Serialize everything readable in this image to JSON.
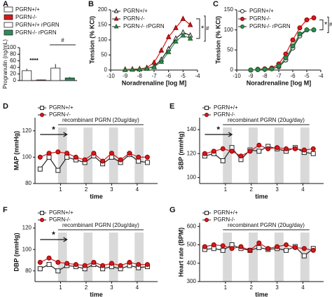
{
  "chart_data": [
    {
      "panel": "A",
      "type": "bar",
      "ylabel": "Progranulin (ng/mL)",
      "categories": [
        null,
        null,
        null,
        null
      ],
      "legend": [
        "PGRN+/+",
        "PGRN-/-",
        "PGRN+/+ rPGRN",
        "PGRN-/- rPGRN"
      ],
      "colors": [
        "#ffffff",
        "#d7191c",
        "#ffffff",
        "#2e8b57"
      ],
      "values": [
        30,
        2,
        38,
        8
      ],
      "errors": [
        6,
        1,
        12,
        3
      ],
      "significance": [
        "****",
        "#"
      ],
      "ylim": [
        0,
        100
      ],
      "yticks": [
        0,
        20,
        40,
        60,
        80,
        100
      ]
    },
    {
      "panel": "B",
      "type": "line",
      "ylabel": "Tension (% KCl)",
      "xlabel": "Noradrenaline [log M]",
      "x": [
        -9,
        -8.5,
        -8,
        -7.5,
        -7,
        -6.5,
        -6,
        -5.5,
        -5,
        -4.5
      ],
      "series": [
        {
          "name": "PGRN+/+",
          "color": "#ffffff",
          "marker": "triangle",
          "values": [
            2,
            2,
            3,
            5,
            12,
            35,
            70,
            105,
            125,
            115
          ]
        },
        {
          "name": "PGRN-/-",
          "color": "#d7191c",
          "marker": "triangle",
          "values": [
            2,
            3,
            4,
            8,
            25,
            65,
            110,
            140,
            170,
            150
          ]
        },
        {
          "name": "PGRN-/- rPGRN",
          "color": "#2e8b57",
          "marker": "triangle",
          "values": [
            1,
            2,
            3,
            5,
            10,
            28,
            60,
            95,
            115,
            105
          ]
        }
      ],
      "significance": [
        "*",
        "#"
      ],
      "xlim": [
        -10,
        -4
      ],
      "xticks": [
        -10,
        -9,
        -8,
        -7,
        -6,
        -5,
        -4
      ],
      "ylim": [
        0,
        200
      ],
      "yticks": [
        0,
        50,
        100,
        150,
        200
      ]
    },
    {
      "panel": "C",
      "type": "line",
      "ylabel": "Tension (% KCl)",
      "xlabel": "Noradrenaline [log M]",
      "x": [
        -9,
        -8.5,
        -8,
        -7.5,
        -7,
        -6.5,
        -6,
        -5.5,
        -5,
        -4.5
      ],
      "series": [
        {
          "name": "PGRN+/+",
          "color": "#ffffff",
          "marker": "circle",
          "values": [
            0,
            1,
            2,
            3,
            8,
            25,
            55,
            85,
            100,
            100
          ]
        },
        {
          "name": "PGRN-/-",
          "color": "#d7191c",
          "marker": "circle",
          "values": [
            0,
            2,
            3,
            5,
            15,
            40,
            75,
            105,
            125,
            130
          ]
        },
        {
          "name": "PGRN-/- rPGRN",
          "color": "#2e8b57",
          "marker": "circle",
          "values": [
            0,
            1,
            2,
            3,
            10,
            30,
            60,
            90,
            100,
            100
          ]
        }
      ],
      "significance": [
        "*",
        "#"
      ],
      "xlim": [
        -10,
        -4
      ],
      "xticks": [
        -10,
        -9,
        -8,
        -7,
        -6,
        -5,
        -4
      ],
      "ylim": [
        0,
        150
      ],
      "yticks": [
        0,
        50,
        100,
        150
      ]
    },
    {
      "panel": "D",
      "type": "line",
      "ylabel": "MAP (mmHg)",
      "xlabel": "time",
      "annotation": "recombinant PGRN (20ug/day)",
      "arrow_label": "*",
      "shaded_intervals": [
        [
          0.9,
          1.25
        ],
        [
          1.9,
          2.25
        ],
        [
          2.9,
          3.25
        ],
        [
          3.9,
          4.25
        ]
      ],
      "x": [
        0.2,
        0.55,
        0.9,
        1.25,
        1.6,
        1.95,
        2.3,
        2.65,
        3.0,
        3.35,
        3.7,
        4.05,
        4.4
      ],
      "series": [
        {
          "name": "PGRN+/+",
          "color": "#ffffff",
          "marker": "square",
          "values": [
            91,
            100,
            90,
            100,
            98,
            96,
            101,
            95,
            100,
            96,
            102,
            97,
            96
          ]
        },
        {
          "name": "PGRN-/-",
          "color": "#d7191c",
          "marker": "circle",
          "values": [
            100,
            103,
            104,
            103,
            100,
            98,
            103,
            97,
            103,
            98,
            103,
            100,
            100
          ]
        }
      ],
      "xlim": [
        0,
        4.8
      ],
      "xticks": [
        1,
        2,
        3,
        4
      ],
      "ylim": [
        80,
        130
      ],
      "yticks": [
        80,
        100,
        120
      ]
    },
    {
      "panel": "E",
      "type": "line",
      "ylabel": "SBP (mmHg)",
      "xlabel": "time",
      "annotation": "recombinant PGRN (20ug/day)",
      "arrow_label": "*",
      "shaded_intervals": [
        [
          0.9,
          1.25
        ],
        [
          1.9,
          2.25
        ],
        [
          2.9,
          3.25
        ],
        [
          3.9,
          4.25
        ]
      ],
      "x": [
        0.2,
        0.55,
        0.9,
        1.25,
        1.6,
        1.95,
        2.3,
        2.65,
        3.0,
        3.35,
        3.7,
        4.05,
        4.4
      ],
      "series": [
        {
          "name": "PGRN+/+",
          "color": "#ffffff",
          "marker": "square",
          "values": [
            118,
            120,
            114,
            125,
            115,
            123,
            122,
            126,
            124,
            122,
            125,
            121,
            120
          ]
        },
        {
          "name": "PGRN-/-",
          "color": "#d7191c",
          "marker": "circle",
          "values": [
            120,
            122,
            124,
            122,
            118,
            122,
            127,
            124,
            125,
            124,
            124,
            123,
            124
          ]
        }
      ],
      "xlim": [
        0,
        4.8
      ],
      "xticks": [
        1,
        2,
        3,
        4
      ],
      "ylim": [
        95,
        150
      ],
      "yticks": [
        100,
        120,
        140
      ]
    },
    {
      "panel": "F",
      "type": "line",
      "ylabel": "DBP (mmHg)",
      "xlabel": "time",
      "annotation": "recombinant PGRN (20ug/day)",
      "arrow_label": "*",
      "shaded_intervals": [
        [
          0.9,
          1.25
        ],
        [
          1.9,
          2.25
        ],
        [
          2.9,
          3.25
        ],
        [
          3.9,
          4.25
        ]
      ],
      "x": [
        0.2,
        0.55,
        0.9,
        1.25,
        1.6,
        1.95,
        2.3,
        2.65,
        3.0,
        3.35,
        3.7,
        4.05,
        4.4
      ],
      "series": [
        {
          "name": "PGRN+/+",
          "color": "#ffffff",
          "marker": "square",
          "values": [
            82,
            86,
            80,
            85,
            84,
            82,
            86,
            82,
            84,
            82,
            85,
            83,
            84
          ]
        },
        {
          "name": "PGRN-/-",
          "color": "#d7191c",
          "marker": "circle",
          "values": [
            88,
            92,
            88,
            87,
            86,
            85,
            88,
            85,
            87,
            85,
            88,
            86,
            86
          ]
        }
      ],
      "xlim": [
        0,
        4.8
      ],
      "xticks": [
        1,
        2,
        3,
        4
      ],
      "ylim": [
        70,
        125
      ],
      "yticks": [
        80,
        100,
        120
      ]
    },
    {
      "panel": "G",
      "type": "line",
      "ylabel": "Heart rate (BPM)",
      "xlabel": "time",
      "annotation": "recombinant PGRN (20ug/day)",
      "shaded_intervals": [
        [
          0.9,
          1.25
        ],
        [
          1.9,
          2.25
        ],
        [
          2.9,
          3.25
        ],
        [
          3.9,
          4.25
        ]
      ],
      "x": [
        0.2,
        0.55,
        0.9,
        1.25,
        1.6,
        1.95,
        2.3,
        2.65,
        3.0,
        3.35,
        3.7,
        4.05,
        4.4
      ],
      "series": [
        {
          "name": "PGRN+/+",
          "color": "#ffffff",
          "marker": "square",
          "values": [
            475,
            480,
            470,
            500,
            480,
            470,
            485,
            475,
            480,
            470,
            490,
            440,
            480
          ]
        },
        {
          "name": "PGRN-/-",
          "color": "#d7191c",
          "marker": "circle",
          "values": [
            490,
            500,
            495,
            480,
            490,
            470,
            510,
            480,
            490,
            500,
            485,
            480,
            470
          ]
        }
      ],
      "xlim": [
        0,
        4.8
      ],
      "xticks": [
        1,
        2,
        3,
        4
      ],
      "ylim": [
        300,
        620
      ],
      "yticks": [
        300,
        400,
        500,
        600
      ]
    }
  ]
}
